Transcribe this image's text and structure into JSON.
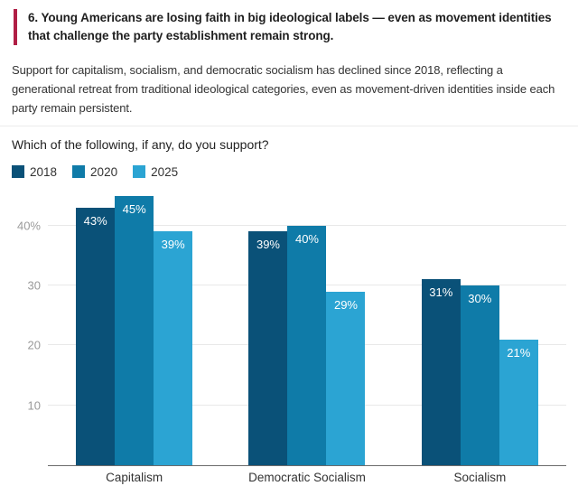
{
  "page": {
    "heading": "6. Young Americans are losing faith in big ideological labels — even as movement identities that challenge the party establishment remain strong.",
    "intro": "Support for capitalism, socialism, and democratic socialism has declined since 2018, reflecting a generational retreat from traditional ideological categories, even as movement-driven identities inside each party remain persistent."
  },
  "chart_data": {
    "type": "bar",
    "title": "Which of the following, if any, do you support?",
    "categories": [
      "Capitalism",
      "Democratic Socialism",
      "Socialism"
    ],
    "series": [
      {
        "name": "2018",
        "color": "#0a5178",
        "values": [
          43,
          39,
          31
        ]
      },
      {
        "name": "2020",
        "color": "#0f7ba8",
        "values": [
          45,
          40,
          30
        ]
      },
      {
        "name": "2025",
        "color": "#2ba4d3",
        "values": [
          39,
          29,
          21
        ]
      }
    ],
    "value_suffix": "%",
    "yticks": [
      10,
      20,
      30,
      40
    ],
    "ytick_labels": [
      "10",
      "20",
      "30",
      "40%"
    ],
    "ylim": [
      0,
      46
    ],
    "grid": true,
    "legend_position": "top-left",
    "xlabel": "",
    "ylabel": ""
  },
  "style": {
    "accent": "#b01e45",
    "axis_line": "#6b6b6b",
    "gridline": "#e8e8e8",
    "tick_color": "#9a9a9a"
  }
}
